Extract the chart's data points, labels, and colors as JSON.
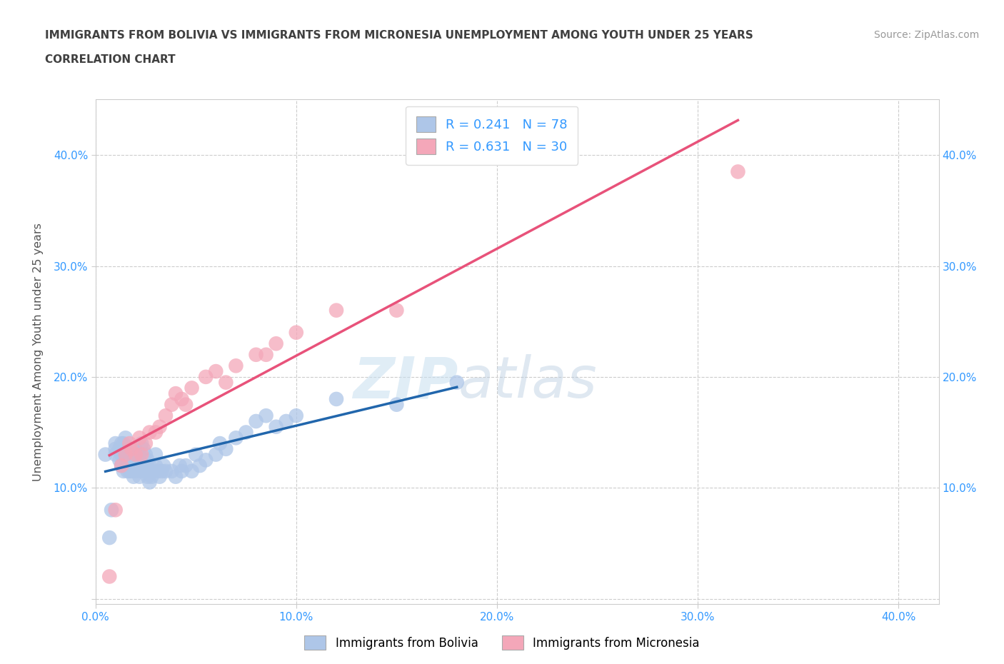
{
  "title_line1": "IMMIGRANTS FROM BOLIVIA VS IMMIGRANTS FROM MICRONESIA UNEMPLOYMENT AMONG YOUTH UNDER 25 YEARS",
  "title_line2": "CORRELATION CHART",
  "source_text": "Source: ZipAtlas.com",
  "ylabel": "Unemployment Among Youth under 25 years",
  "xlim": [
    0.0,
    0.42
  ],
  "ylim": [
    -0.005,
    0.45
  ],
  "xticks": [
    0.0,
    0.1,
    0.2,
    0.3,
    0.4
  ],
  "yticks": [
    0.0,
    0.1,
    0.2,
    0.3,
    0.4
  ],
  "xticklabels": [
    "0.0%",
    "10.0%",
    "20.0%",
    "30.0%",
    "40.0%"
  ],
  "yticklabels": [
    "",
    "10.0%",
    "20.0%",
    "30.0%",
    "40.0%"
  ],
  "right_yticklabels": [
    "10.0%",
    "20.0%",
    "30.0%",
    "40.0%"
  ],
  "right_yticks": [
    0.1,
    0.2,
    0.3,
    0.4
  ],
  "bolivia_color": "#aec6e8",
  "micronesia_color": "#f4a7b9",
  "bolivia_line_color": "#2166ac",
  "micronesia_line_color": "#e8527a",
  "dashed_line_color": "#b0b0b0",
  "R_bolivia": 0.241,
  "N_bolivia": 78,
  "R_micronesia": 0.631,
  "N_micronesia": 30,
  "legend_r_color": "#3399ff",
  "watermark_zip": "ZIP",
  "watermark_atlas": "atlas",
  "title_color": "#404040",
  "axis_label_color": "#555555",
  "tick_color": "#3399ff",
  "bolivia_scatter_x": [
    0.005,
    0.007,
    0.008,
    0.01,
    0.01,
    0.01,
    0.012,
    0.012,
    0.013,
    0.013,
    0.013,
    0.013,
    0.014,
    0.014,
    0.015,
    0.015,
    0.015,
    0.015,
    0.016,
    0.016,
    0.016,
    0.017,
    0.017,
    0.018,
    0.018,
    0.018,
    0.019,
    0.019,
    0.02,
    0.02,
    0.02,
    0.02,
    0.021,
    0.021,
    0.022,
    0.022,
    0.022,
    0.023,
    0.023,
    0.024,
    0.024,
    0.025,
    0.025,
    0.026,
    0.026,
    0.027,
    0.027,
    0.028,
    0.028,
    0.03,
    0.03,
    0.031,
    0.032,
    0.033,
    0.034,
    0.035,
    0.038,
    0.04,
    0.042,
    0.043,
    0.045,
    0.048,
    0.05,
    0.052,
    0.055,
    0.06,
    0.062,
    0.065,
    0.07,
    0.075,
    0.08,
    0.085,
    0.09,
    0.095,
    0.1,
    0.12,
    0.15,
    0.18
  ],
  "bolivia_scatter_y": [
    0.13,
    0.055,
    0.08,
    0.13,
    0.135,
    0.14,
    0.125,
    0.135,
    0.12,
    0.13,
    0.135,
    0.14,
    0.115,
    0.14,
    0.12,
    0.13,
    0.135,
    0.145,
    0.115,
    0.125,
    0.13,
    0.115,
    0.13,
    0.115,
    0.125,
    0.135,
    0.11,
    0.13,
    0.115,
    0.12,
    0.13,
    0.135,
    0.12,
    0.13,
    0.11,
    0.125,
    0.13,
    0.115,
    0.14,
    0.12,
    0.135,
    0.115,
    0.13,
    0.11,
    0.125,
    0.105,
    0.12,
    0.11,
    0.115,
    0.12,
    0.13,
    0.115,
    0.11,
    0.115,
    0.12,
    0.115,
    0.115,
    0.11,
    0.12,
    0.115,
    0.12,
    0.115,
    0.13,
    0.12,
    0.125,
    0.13,
    0.14,
    0.135,
    0.145,
    0.15,
    0.16,
    0.165,
    0.155,
    0.16,
    0.165,
    0.18,
    0.175,
    0.195
  ],
  "micronesia_scatter_x": [
    0.007,
    0.01,
    0.013,
    0.015,
    0.017,
    0.018,
    0.02,
    0.022,
    0.023,
    0.025,
    0.027,
    0.03,
    0.032,
    0.035,
    0.038,
    0.04,
    0.043,
    0.045,
    0.048,
    0.055,
    0.06,
    0.065,
    0.07,
    0.08,
    0.085,
    0.09,
    0.1,
    0.12,
    0.15,
    0.32
  ],
  "micronesia_scatter_y": [
    0.02,
    0.08,
    0.12,
    0.13,
    0.14,
    0.135,
    0.13,
    0.145,
    0.13,
    0.14,
    0.15,
    0.15,
    0.155,
    0.165,
    0.175,
    0.185,
    0.18,
    0.175,
    0.19,
    0.2,
    0.205,
    0.195,
    0.21,
    0.22,
    0.22,
    0.23,
    0.24,
    0.26,
    0.26,
    0.385
  ],
  "bolivia_line_x": [
    0.005,
    0.18
  ],
  "micronesia_line_x": [
    0.007,
    0.32
  ],
  "dashed_line_pts": [
    [
      0.005,
      0.005
    ],
    [
      0.4,
      0.4
    ]
  ]
}
